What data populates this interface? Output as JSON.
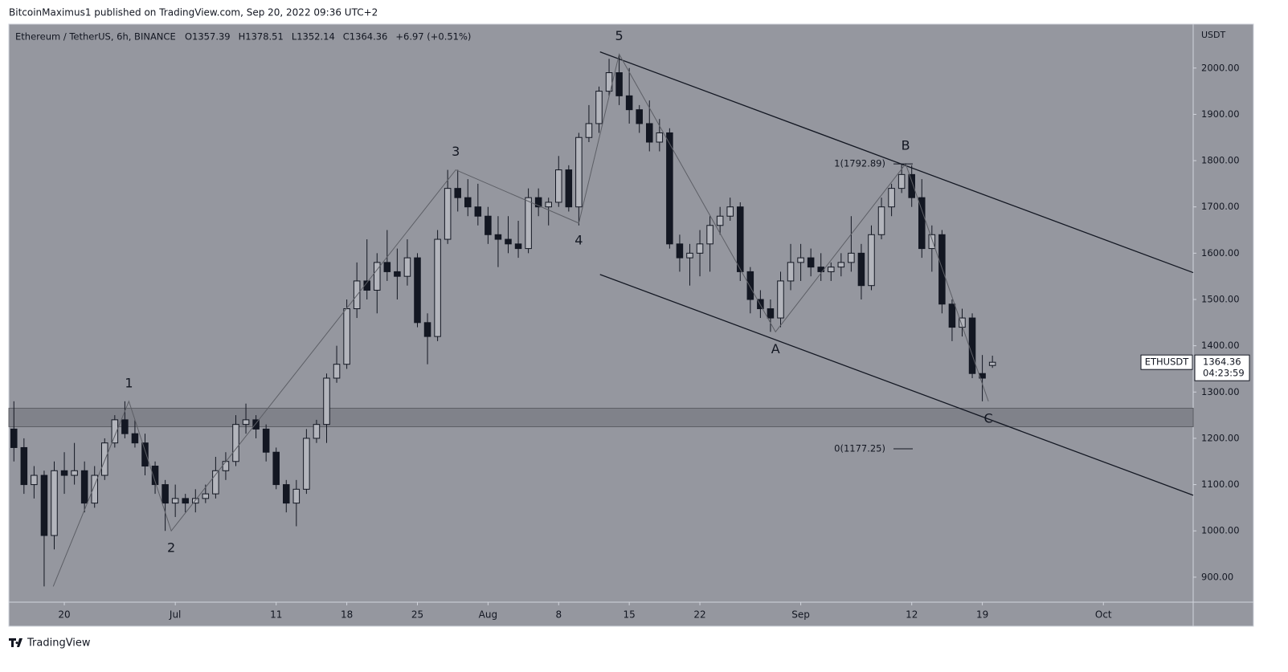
{
  "header": "BitcoinMaximus1 published on TradingView.com, Sep 20, 2022 09:36 UTC+2",
  "footer": "TradingView",
  "chart_data": {
    "type": "candlestick",
    "title": "Ethereum / TetherUS, 6h, BINANCE",
    "ohlc_legend": [
      "O1357.39",
      "H1378.51",
      "L1352.14",
      "C1364.36",
      "+6.97 (+0.51%)"
    ],
    "y_axis_label": "USDT",
    "symbol": "ETHUSDT",
    "last_price": 1364.36,
    "countdown": "04:23:59",
    "x": [
      0,
      1,
      2,
      3,
      4,
      5,
      6,
      7,
      8,
      9,
      10,
      11,
      12,
      13,
      14,
      15,
      16,
      17,
      18,
      19,
      20,
      21,
      22,
      23,
      24,
      25,
      26,
      27,
      28,
      29,
      30,
      31,
      32,
      33,
      34,
      35,
      36,
      37,
      38,
      39,
      40,
      41,
      42,
      43,
      44,
      45,
      46,
      47,
      48,
      49,
      50,
      51,
      52,
      53,
      54,
      55,
      56,
      57,
      58,
      59,
      60,
      61,
      62,
      63,
      64,
      65,
      66,
      67,
      68,
      69,
      70,
      71,
      72,
      73,
      74,
      75,
      76,
      77,
      78,
      79,
      80,
      81,
      82,
      83,
      84,
      85,
      86,
      87,
      88,
      89,
      90,
      91,
      92,
      93,
      94,
      95,
      96,
      97
    ],
    "open": [
      1220,
      1180,
      1100,
      1120,
      990,
      1130,
      1120,
      1130,
      1060,
      1120,
      1190,
      1240,
      1210,
      1190,
      1140,
      1100,
      1060,
      1070,
      1060,
      1070,
      1080,
      1130,
      1150,
      1230,
      1240,
      1220,
      1170,
      1100,
      1060,
      1090,
      1200,
      1230,
      1330,
      1360,
      1480,
      1540,
      1520,
      1580,
      1560,
      1550,
      1590,
      1450,
      1420,
      1630,
      1740,
      1720,
      1700,
      1680,
      1640,
      1630,
      1620,
      1610,
      1720,
      1700,
      1710,
      1780,
      1700,
      1850,
      1880,
      1950,
      1990,
      1940,
      1910,
      1880,
      1840,
      1860,
      1620,
      1590,
      1600,
      1620,
      1660,
      1680,
      1700,
      1560,
      1500,
      1480,
      1460,
      1540,
      1580,
      1590,
      1570,
      1560,
      1570,
      1580,
      1600,
      1530,
      1640,
      1700,
      1740,
      1770,
      1720,
      1610,
      1640,
      1490,
      1440,
      1460,
      1340,
      1357.39
    ],
    "high": [
      1280,
      1200,
      1140,
      1130,
      1150,
      1170,
      1190,
      1150,
      1140,
      1200,
      1250,
      1280,
      1240,
      1210,
      1150,
      1110,
      1100,
      1080,
      1090,
      1100,
      1160,
      1170,
      1250,
      1275,
      1250,
      1230,
      1180,
      1110,
      1110,
      1220,
      1240,
      1340,
      1400,
      1500,
      1580,
      1630,
      1600,
      1650,
      1610,
      1630,
      1600,
      1470,
      1650,
      1780,
      1780,
      1760,
      1750,
      1700,
      1680,
      1680,
      1670,
      1740,
      1740,
      1720,
      1810,
      1790,
      1860,
      1920,
      1960,
      2020,
      2030,
      2000,
      1920,
      1930,
      1890,
      1870,
      1640,
      1620,
      1650,
      1680,
      1700,
      1720,
      1710,
      1570,
      1520,
      1500,
      1560,
      1620,
      1620,
      1610,
      1600,
      1580,
      1600,
      1680,
      1620,
      1660,
      1720,
      1750,
      1793,
      1790,
      1760,
      1660,
      1650,
      1500,
      1480,
      1470,
      1380,
      1378.51
    ],
    "low": [
      1150,
      1080,
      1070,
      880,
      960,
      1080,
      1100,
      1040,
      1050,
      1110,
      1180,
      1200,
      1180,
      1120,
      1080,
      1000,
      1030,
      1040,
      1040,
      1060,
      1070,
      1110,
      1140,
      1210,
      1200,
      1150,
      1090,
      1040,
      1010,
      1080,
      1190,
      1190,
      1320,
      1350,
      1460,
      1500,
      1470,
      1540,
      1500,
      1530,
      1440,
      1360,
      1410,
      1620,
      1690,
      1680,
      1660,
      1620,
      1570,
      1600,
      1590,
      1600,
      1680,
      1660,
      1700,
      1690,
      1660,
      1840,
      1860,
      1940,
      1920,
      1880,
      1860,
      1820,
      1820,
      1610,
      1560,
      1530,
      1550,
      1560,
      1640,
      1670,
      1540,
      1470,
      1460,
      1430,
      1440,
      1520,
      1540,
      1550,
      1540,
      1540,
      1550,
      1560,
      1500,
      1520,
      1630,
      1680,
      1730,
      1700,
      1590,
      1560,
      1470,
      1410,
      1420,
      1330,
      1280,
      1352.14
    ],
    "close": [
      1180,
      1100,
      1120,
      990,
      1130,
      1120,
      1130,
      1060,
      1120,
      1190,
      1240,
      1210,
      1190,
      1140,
      1100,
      1060,
      1070,
      1060,
      1070,
      1080,
      1130,
      1150,
      1230,
      1240,
      1220,
      1170,
      1100,
      1060,
      1090,
      1200,
      1230,
      1330,
      1360,
      1480,
      1540,
      1520,
      1580,
      1560,
      1550,
      1590,
      1450,
      1420,
      1630,
      1740,
      1720,
      1700,
      1680,
      1640,
      1630,
      1620,
      1610,
      1720,
      1700,
      1710,
      1780,
      1700,
      1850,
      1880,
      1950,
      1990,
      1940,
      1910,
      1880,
      1840,
      1860,
      1620,
      1590,
      1600,
      1620,
      1660,
      1680,
      1700,
      1560,
      1500,
      1480,
      1460,
      1540,
      1580,
      1590,
      1570,
      1560,
      1570,
      1580,
      1600,
      1530,
      1640,
      1700,
      1740,
      1770,
      1720,
      1610,
      1640,
      1490,
      1440,
      1460,
      1340,
      1330,
      1364.36
    ],
    "up_color": "#b3b5bc",
    "down_color": "#131722",
    "background": "#95979f",
    "xlim": [
      -0.5,
      116.9
    ],
    "xticks": [
      {
        "value": 5,
        "label": "20"
      },
      {
        "value": 16,
        "label": "Jul"
      },
      {
        "value": 26,
        "label": "11"
      },
      {
        "value": 33,
        "label": "18"
      },
      {
        "value": 40,
        "label": "25"
      },
      {
        "value": 47,
        "label": "Aug"
      },
      {
        "value": 54,
        "label": "8"
      },
      {
        "value": 61,
        "label": "15"
      },
      {
        "value": 68,
        "label": "22"
      },
      {
        "value": 78,
        "label": "Sep"
      },
      {
        "value": 89,
        "label": "12"
      },
      {
        "value": 96,
        "label": "19"
      },
      {
        "value": 108,
        "label": "Oct"
      }
    ],
    "ylim": [
      846,
      2095
    ],
    "yticks": [
      {
        "value": 900,
        "label": "900.00"
      },
      {
        "value": 1000,
        "label": "1000.00"
      },
      {
        "value": 1100,
        "label": "1100.00"
      },
      {
        "value": 1200,
        "label": "1200.00"
      },
      {
        "value": 1300,
        "label": "1300.00"
      },
      {
        "value": 1400,
        "label": "1400.00"
      },
      {
        "value": 1500,
        "label": "1500.00"
      },
      {
        "value": 1600,
        "label": "1600.00"
      },
      {
        "value": 1700,
        "label": "1700.00"
      },
      {
        "value": 1800,
        "label": "1800.00"
      },
      {
        "value": 1900,
        "label": "1900.00"
      },
      {
        "value": 2000,
        "label": "2000.00"
      }
    ],
    "support_zone": [
      1225,
      1265
    ],
    "trendlines": [
      {
        "x": [
          58.1,
          116.9
        ],
        "y": [
          2035,
          1558
        ]
      },
      {
        "x": [
          58.1,
          116.9
        ],
        "y": [
          1554,
          1077
        ]
      }
    ],
    "waves": [
      {
        "label": null,
        "x": 3.9,
        "price": 880
      },
      {
        "label": "1",
        "x": 11.4,
        "price": 1280
      },
      {
        "label": "2",
        "x": 15.6,
        "price": 1000
      },
      {
        "label": "3",
        "x": 43.8,
        "price": 1780
      },
      {
        "label": "4",
        "x": 56,
        "price": 1665
      },
      {
        "label": "5",
        "x": 60,
        "price": 2030
      },
      {
        "label": "A",
        "x": 75.5,
        "price": 1430
      },
      {
        "label": "B",
        "x": 88.4,
        "price": 1793
      },
      {
        "label": "C",
        "x": 96.6,
        "price": 1280
      }
    ],
    "fib_levels": [
      {
        "label": "1(1792.89)",
        "value": 1792.89
      },
      {
        "label": "0(1177.25)",
        "value": 1177.25
      }
    ]
  }
}
